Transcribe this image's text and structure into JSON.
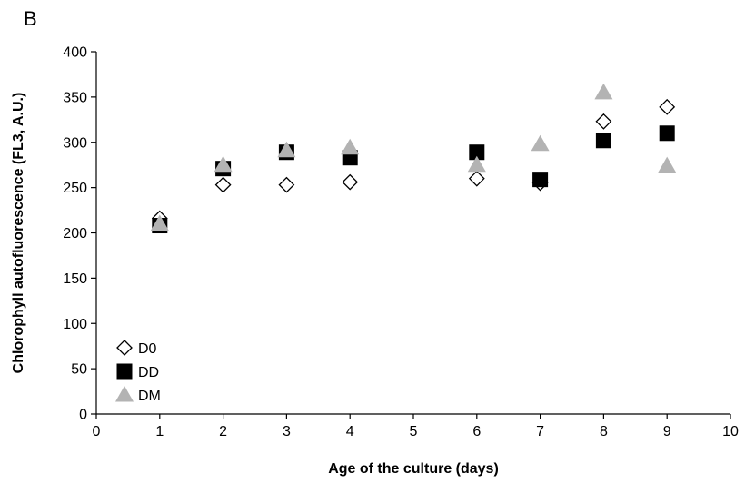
{
  "chart_data": {
    "type": "scatter",
    "panel_label": "B",
    "xlabel": "Age of the culture (days)",
    "ylabel": "Chlorophyll autofluorescence (FL3, A.U.)",
    "xlim": [
      0,
      10
    ],
    "ylim": [
      0,
      400
    ],
    "x_ticks": [
      0,
      1,
      2,
      3,
      4,
      5,
      6,
      7,
      8,
      9,
      10
    ],
    "y_ticks": [
      0,
      50,
      100,
      150,
      200,
      250,
      300,
      350,
      400
    ],
    "grid": false,
    "legend_position": "bottom-left",
    "series": [
      {
        "name": "D0",
        "marker": "diamond-open",
        "color": "#000000",
        "points": [
          {
            "x": 1,
            "y": 216
          },
          {
            "x": 2,
            "y": 253
          },
          {
            "x": 3,
            "y": 253
          },
          {
            "x": 4,
            "y": 256
          },
          {
            "x": 6,
            "y": 260
          },
          {
            "x": 7,
            "y": 255
          },
          {
            "x": 8,
            "y": 323
          },
          {
            "x": 9,
            "y": 339
          }
        ]
      },
      {
        "name": "DD",
        "marker": "square-filled",
        "color": "#000000",
        "points": [
          {
            "x": 1,
            "y": 208
          },
          {
            "x": 2,
            "y": 271
          },
          {
            "x": 3,
            "y": 289
          },
          {
            "x": 4,
            "y": 283
          },
          {
            "x": 6,
            "y": 289
          },
          {
            "x": 7,
            "y": 259
          },
          {
            "x": 8,
            "y": 302
          },
          {
            "x": 9,
            "y": 310
          }
        ]
      },
      {
        "name": "DM",
        "marker": "triangle-filled",
        "color": "#b3b3b3",
        "points": [
          {
            "x": 1,
            "y": 210
          },
          {
            "x": 2,
            "y": 275
          },
          {
            "x": 3,
            "y": 291
          },
          {
            "x": 4,
            "y": 294
          },
          {
            "x": 6,
            "y": 275
          },
          {
            "x": 7,
            "y": 298
          },
          {
            "x": 8,
            "y": 355
          },
          {
            "x": 9,
            "y": 274
          }
        ]
      }
    ]
  }
}
